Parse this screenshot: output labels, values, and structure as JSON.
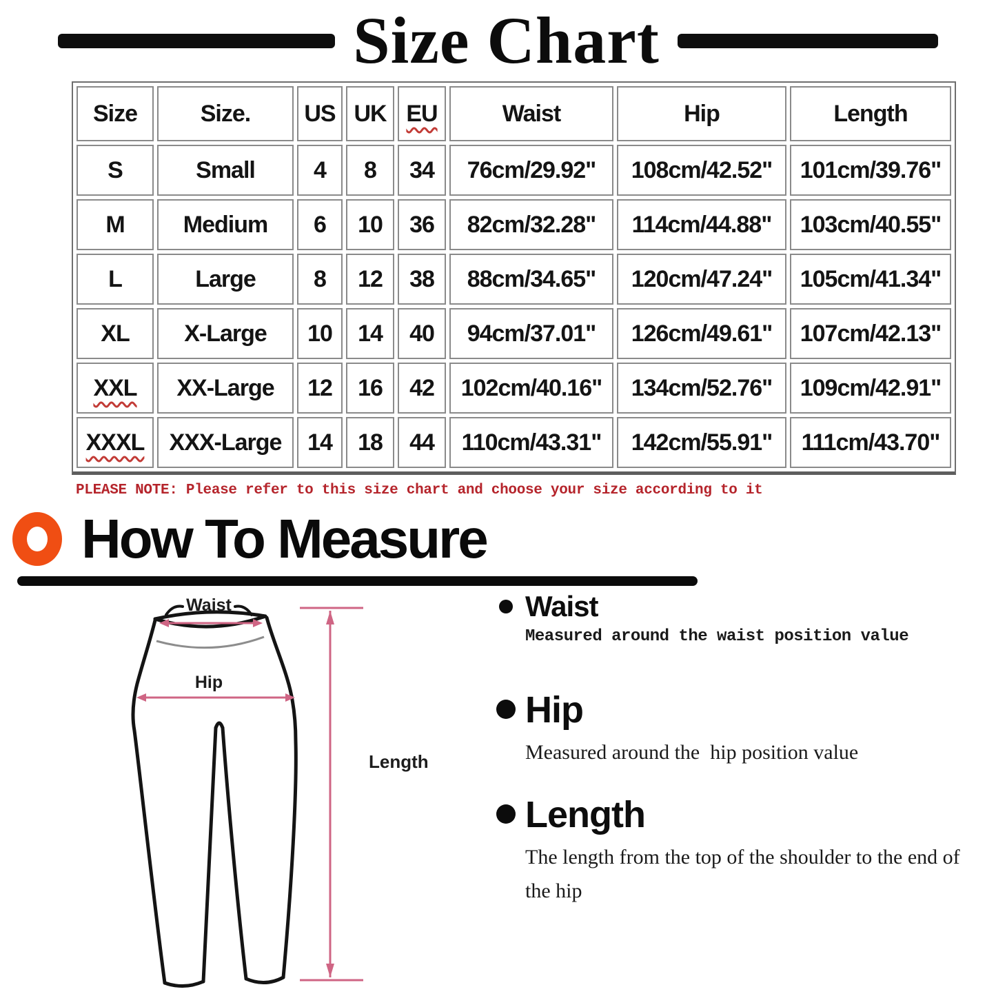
{
  "title": "Size Chart",
  "size_table": {
    "headers": [
      "Size",
      "Size.",
      "US",
      "UK",
      "EU",
      "Waist",
      "Hip",
      "Length"
    ],
    "rows": [
      [
        "S",
        "Small",
        "4",
        "8",
        "34",
        "76cm/29.92\"",
        "108cm/42.52\"",
        "101cm/39.76\""
      ],
      [
        "M",
        "Medium",
        "6",
        "10",
        "36",
        "82cm/32.28\"",
        "114cm/44.88\"",
        "103cm/40.55\""
      ],
      [
        "L",
        "Large",
        "8",
        "12",
        "38",
        "88cm/34.65\"",
        "120cm/47.24\"",
        "105cm/41.34\""
      ],
      [
        "XL",
        "X-Large",
        "10",
        "14",
        "40",
        "94cm/37.01\"",
        "126cm/49.61\"",
        "107cm/42.13\""
      ],
      [
        "XXL",
        "XX-Large",
        "12",
        "16",
        "42",
        "102cm/40.16\"",
        "134cm/52.76\"",
        "109cm/42.91\""
      ],
      [
        "XXXL",
        "XXX-Large",
        "14",
        "18",
        "44",
        "110cm/43.31\"",
        "142cm/55.91\"",
        "111cm/43.70\""
      ]
    ],
    "misspelled": [
      "EU",
      "XXL",
      "XXXL"
    ]
  },
  "note": "PLEASE NOTE: Please refer to this size chart and choose your size according to it",
  "how_to_measure": {
    "heading": "How To Measure",
    "items": [
      {
        "title": "Waist",
        "desc": "Measured around the waist position value"
      },
      {
        "title": "Hip",
        "desc": "Measured around the  hip position value"
      },
      {
        "title": "Length",
        "desc": "The length from the top of the shoulder to the end of the hip"
      }
    ]
  },
  "diagram": {
    "waist_label": "Waist",
    "hip_label": "Hip",
    "length_label": "Length"
  },
  "colors": {
    "note_red": "#b5242b",
    "ring_orange": "#f04e13",
    "measure_pink": "#cf6584",
    "squiggle_red": "#c23b36"
  }
}
